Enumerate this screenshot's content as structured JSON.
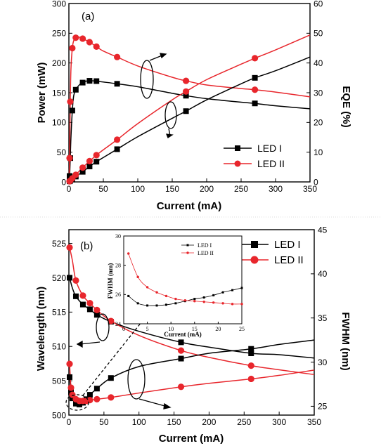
{
  "colors": {
    "led1": "#000000",
    "led2": "#e8262c",
    "panel_label": "#e87722"
  },
  "chart_data": [
    {
      "panel_label": "(a)",
      "type": "line",
      "xlabel": "Current (mA)",
      "ylabel_left": "Power (mW)",
      "ylabel_right": "EQE (%)",
      "xlim": [
        0,
        350
      ],
      "ylim_left": [
        0,
        300
      ],
      "ylim_right": [
        0,
        60
      ],
      "xticks": [
        0,
        50,
        100,
        150,
        200,
        250,
        300,
        350
      ],
      "yticks_left": [
        0,
        50,
        100,
        150,
        200,
        250,
        300
      ],
      "yticks_right": [
        0,
        10,
        20,
        30,
        40,
        50,
        60
      ],
      "legend": {
        "position": "lower-right",
        "entries": [
          "LED I",
          "LED II"
        ]
      },
      "series": [
        {
          "name": "LED I",
          "quantity": "EQE",
          "axis": "right",
          "marker": "square",
          "x": [
            0,
            1,
            2,
            3,
            5,
            7,
            10,
            15,
            20,
            25,
            30,
            35,
            40,
            50,
            70,
            100,
            150,
            170,
            200,
            250,
            270,
            300,
            350
          ],
          "y": [
            0,
            2,
            8,
            15,
            24,
            29,
            31,
            32.6,
            33.4,
            33.9,
            34,
            34,
            33.9,
            33.6,
            33,
            32,
            29.8,
            29,
            28,
            26.8,
            26.4,
            25.6,
            24.6
          ],
          "markers_x": [
            1,
            2,
            5,
            10,
            20,
            30,
            40,
            70,
            170,
            270
          ]
        },
        {
          "name": "LED II",
          "quantity": "EQE",
          "axis": "right",
          "marker": "circle",
          "x": [
            0,
            1,
            2,
            3,
            5,
            7,
            10,
            15,
            20,
            30,
            40,
            50,
            70,
            100,
            150,
            170,
            200,
            250,
            270,
            300,
            350
          ],
          "y": [
            0,
            8,
            27,
            38,
            45,
            47.5,
            48.5,
            48.7,
            48.2,
            47,
            45.5,
            44,
            42,
            39,
            35.2,
            34,
            32.6,
            31.4,
            31,
            30.2,
            28.6
          ],
          "markers_x": [
            1,
            2,
            5,
            10,
            20,
            30,
            40,
            70,
            170,
            270
          ]
        },
        {
          "name": "LED I",
          "quantity": "Power",
          "axis": "left",
          "marker": "square",
          "x": [
            0,
            1,
            2,
            5,
            10,
            20,
            30,
            40,
            50,
            70,
            100,
            150,
            170,
            200,
            250,
            270,
            300,
            350
          ],
          "y": [
            0,
            1,
            2,
            4,
            9,
            17,
            26,
            34,
            41,
            55,
            76,
            107,
            119,
            138,
            165,
            175,
            187,
            210
          ],
          "markers_x": [
            1,
            2,
            5,
            10,
            20,
            30,
            40,
            70,
            170,
            270
          ]
        },
        {
          "name": "LED II",
          "quantity": "Power",
          "axis": "left",
          "marker": "circle",
          "x": [
            0,
            1,
            2,
            5,
            10,
            20,
            30,
            40,
            50,
            70,
            100,
            150,
            170,
            200,
            250,
            270,
            300,
            350
          ],
          "y": [
            0,
            1,
            2,
            6,
            12,
            24,
            35,
            45,
            54,
            71,
            98,
            138,
            152,
            172,
            198,
            208,
            222,
            247
          ],
          "markers_x": [
            1,
            2,
            5,
            10,
            20,
            30,
            40,
            70,
            170,
            270
          ]
        }
      ]
    },
    {
      "panel_label": "(b)",
      "type": "line",
      "xlabel": "Current (mA)",
      "ylabel_left": "Wavelength (nm)",
      "ylabel_right": "FWHM (nm)",
      "xlim": [
        0,
        350
      ],
      "ylim_left": [
        500,
        527
      ],
      "ylim_right": [
        24,
        45
      ],
      "xticks": [
        0,
        50,
        100,
        150,
        200,
        250,
        300,
        350
      ],
      "yticks_left": [
        500,
        505,
        510,
        515,
        520,
        525
      ],
      "yticks_right": [
        25,
        30,
        35,
        40,
        45
      ],
      "legend": {
        "position": "top-right",
        "entries": [
          "LED I",
          "LED II"
        ]
      },
      "series": [
        {
          "name": "LED I",
          "quantity": "Wavelength",
          "axis": "left",
          "marker": "square",
          "x": [
            1,
            5,
            10,
            20,
            30,
            40,
            60,
            100,
            160,
            200,
            260,
            300,
            350
          ],
          "y": [
            520,
            518.5,
            517.3,
            516.1,
            515.4,
            514.6,
            513.6,
            512.2,
            510.6,
            509.9,
            509,
            508.8,
            508.3
          ],
          "markers_x": [
            1,
            10,
            20,
            30,
            40,
            60,
            160,
            260
          ]
        },
        {
          "name": "LED II",
          "quantity": "Wavelength",
          "axis": "left",
          "marker": "circle",
          "x": [
            1,
            5,
            10,
            20,
            30,
            40,
            60,
            100,
            160,
            200,
            260,
            300,
            350
          ],
          "y": [
            524.4,
            522.5,
            519.6,
            517.4,
            516.3,
            515.3,
            513.7,
            511.6,
            509.4,
            508.4,
            507.2,
            506.6,
            505.9
          ],
          "markers_x": [
            1,
            10,
            20,
            30,
            40,
            60,
            160,
            260
          ]
        },
        {
          "name": "LED I",
          "quantity": "FWHM",
          "axis": "right",
          "marker": "square",
          "x": [
            1,
            3,
            5,
            10,
            15,
            20,
            25,
            30,
            40,
            60,
            100,
            160,
            200,
            260,
            300,
            350
          ],
          "y": [
            28.3,
            26.6,
            25.9,
            25.3,
            25.2,
            25.4,
            25.8,
            26.3,
            27,
            28.2,
            29.5,
            30.4,
            31,
            31.5,
            32,
            32.5
          ],
          "markers_x": [
            1,
            3,
            5,
            10,
            15,
            20,
            25,
            30,
            40,
            60,
            160,
            260
          ]
        },
        {
          "name": "LED II",
          "quantity": "FWHM",
          "axis": "right",
          "marker": "circle",
          "x": [
            1,
            3,
            5,
            10,
            15,
            20,
            25,
            30,
            40,
            60,
            100,
            160,
            200,
            260,
            300,
            350
          ],
          "y": [
            29.8,
            27.1,
            26.3,
            25.8,
            25.6,
            25.6,
            25.6,
            25.7,
            25.8,
            26,
            26.5,
            27.2,
            27.6,
            28.1,
            28.5,
            29.1
          ],
          "markers_x": [
            1,
            3,
            5,
            10,
            15,
            20,
            25,
            30,
            40,
            60,
            160,
            260
          ]
        }
      ],
      "inset": {
        "type": "line",
        "xlabel": "Current (mA)",
        "ylabel": "FWHM (nm)",
        "xlim": [
          0,
          25
        ],
        "ylim": [
          24,
          30
        ],
        "xticks": [
          0,
          5,
          10,
          15,
          20,
          25
        ],
        "yticks": [
          24,
          26,
          28,
          30
        ],
        "legend": {
          "position": "top-right",
          "entries": [
            "LED I",
            "LED II"
          ]
        },
        "series": [
          {
            "name": "LED I",
            "marker": "square",
            "x": [
              1,
              3,
              5,
              7,
              9,
              11,
              13,
              15,
              17,
              19,
              21,
              23,
              25
            ],
            "y": [
              25.9,
              25.4,
              25.25,
              25.25,
              25.3,
              25.4,
              25.55,
              25.7,
              25.8,
              25.95,
              26.15,
              26.3,
              26.45
            ]
          },
          {
            "name": "LED II",
            "marker": "circle",
            "x": [
              1,
              3,
              5,
              7,
              9,
              11,
              13,
              15,
              17,
              19,
              21,
              23,
              25
            ],
            "y": [
              28.8,
              27.2,
              26.5,
              26.15,
              25.9,
              25.7,
              25.6,
              25.55,
              25.5,
              25.45,
              25.4,
              25.35,
              25.35
            ]
          }
        ]
      }
    }
  ]
}
